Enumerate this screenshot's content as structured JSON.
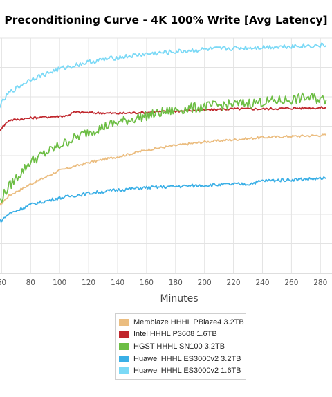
{
  "chart_data": {
    "type": "line",
    "title": "Preconditioning Curve - 4K 100% Write [Avg Latency]",
    "xlabel": "Minutes",
    "ylabel": "",
    "xlim": [
      56,
      284
    ],
    "ylim": [
      0,
      100
    ],
    "x_ticks": [
      "60",
      "80",
      "100",
      "120",
      "140",
      "160",
      "180",
      "200",
      "220",
      "240",
      "260",
      "280"
    ],
    "grid": true,
    "legend_position": "bottom-center",
    "series": [
      {
        "name": "Memblaze HHHL PBlaze4 3.2TB",
        "color": "#EBBD80",
        "x": [
          56,
          65,
          80,
          100,
          120,
          140,
          160,
          180,
          200,
          220,
          240,
          260,
          284
        ],
        "y": [
          28,
          34,
          39,
          45,
          48.5,
          51,
          54,
          56,
          57.5,
          58.5,
          59.5,
          60,
          60.5
        ]
      },
      {
        "name": "Intel HHHL P3608 1.6TB",
        "color": "#C0272D",
        "x": [
          56,
          65,
          80,
          100,
          105,
          110,
          140,
          160,
          180,
          200,
          220,
          240,
          260,
          284
        ],
        "y": [
          61,
          67,
          68,
          68.8,
          69,
          70.5,
          70,
          70.5,
          71,
          71.5,
          72,
          72,
          72.3,
          72.5
        ]
      },
      {
        "name": "HGST HHHL SN100 3.2TB",
        "color": "#6DBE45",
        "x": [
          56,
          65,
          80,
          100,
          120,
          140,
          160,
          180,
          200,
          220,
          240,
          260,
          270,
          284
        ],
        "y": [
          29,
          38,
          49,
          56,
          62,
          66,
          69,
          71.5,
          73,
          74,
          75,
          76,
          77,
          76
        ]
      },
      {
        "name": "Huawei HHHL ES3000v2 3.2TB",
        "color": "#3AAFE6",
        "x": [
          56,
          65,
          80,
          100,
          120,
          140,
          160,
          180,
          200,
          220,
          230,
          240,
          260,
          284
        ],
        "y": [
          21,
          26,
          30,
          33,
          35,
          36.5,
          37.5,
          38,
          38.5,
          39,
          39,
          40.5,
          41,
          41.5
        ]
      },
      {
        "name": "Huawei HHHL ES3000v2 1.6TB",
        "color": "#7BD9F6",
        "x": [
          56,
          65,
          80,
          100,
          120,
          140,
          160,
          180,
          200,
          220,
          240,
          260,
          284
        ],
        "y": [
          71,
          79,
          85,
          89.5,
          92.5,
          94.5,
          96,
          97,
          98,
          98.5,
          99,
          99.5,
          99.8
        ]
      }
    ]
  }
}
